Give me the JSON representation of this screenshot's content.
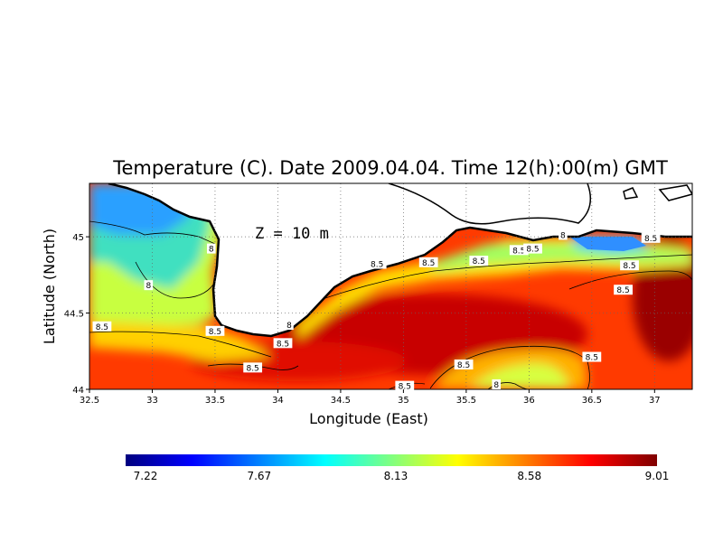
{
  "chart_data": {
    "type": "heatmap",
    "title": "Temperature (C). Date 2009.04.04. Time 12(h):00(m) GMT",
    "depth_label": "Z  =  10  m",
    "xlabel": "Longitude (East)",
    "ylabel": "Latitude (North)",
    "xlim": [
      32.5,
      37.3
    ],
    "ylim": [
      44.0,
      45.35
    ],
    "x_ticks": [
      "32.5",
      "33",
      "33.5",
      "34",
      "34.5",
      "35",
      "35.5",
      "36",
      "36.5",
      "37"
    ],
    "x_tick_values": [
      32.5,
      33,
      33.5,
      34,
      34.5,
      35,
      35.5,
      36,
      36.5,
      37
    ],
    "y_ticks": [
      "44",
      "44.5",
      "45"
    ],
    "y_tick_values": [
      44,
      44.5,
      45
    ],
    "grid": true,
    "colorbar": {
      "min": 7.22,
      "max": 9.01,
      "tick_labels": [
        "7.22",
        "7.67",
        "8.13",
        "8.58",
        "9.01"
      ],
      "tick_values": [
        7.22,
        7.67,
        8.13,
        8.58,
        9.01
      ],
      "colors": [
        "#00007f",
        "#0000ff",
        "#0080ff",
        "#00ffff",
        "#80ff80",
        "#ffff00",
        "#ff8000",
        "#ff0000",
        "#7f0000"
      ]
    },
    "contour_labels": [
      {
        "text": "8",
        "lon": 32.97,
        "lat": 44.68
      },
      {
        "text": "8",
        "lon": 33.47,
        "lat": 44.92
      },
      {
        "text": "8.5",
        "lon": 32.6,
        "lat": 44.41
      },
      {
        "text": "8.5",
        "lon": 33.5,
        "lat": 44.38
      },
      {
        "text": "8.5",
        "lon": 33.8,
        "lat": 44.14
      },
      {
        "text": "8.5",
        "lon": 34.04,
        "lat": 44.3
      },
      {
        "text": "8",
        "lon": 34.09,
        "lat": 44.42
      },
      {
        "text": "8.5",
        "lon": 34.79,
        "lat": 44.82
      },
      {
        "text": "8.5",
        "lon": 35.2,
        "lat": 44.83
      },
      {
        "text": "8.5",
        "lon": 35.6,
        "lat": 44.84
      },
      {
        "text": "8.5",
        "lon": 35.92,
        "lat": 44.91
      },
      {
        "text": "8.5",
        "lon": 36.03,
        "lat": 44.92
      },
      {
        "text": "8",
        "lon": 36.27,
        "lat": 45.01
      },
      {
        "text": "8.5",
        "lon": 36.97,
        "lat": 44.99
      },
      {
        "text": "8.5",
        "lon": 36.8,
        "lat": 44.81
      },
      {
        "text": "8.5",
        "lon": 36.75,
        "lat": 44.65
      },
      {
        "text": "8.5",
        "lon": 36.5,
        "lat": 44.21
      },
      {
        "text": "8.5",
        "lon": 35.48,
        "lat": 44.16
      },
      {
        "text": "8.5",
        "lon": 35.01,
        "lat": 44.02
      },
      {
        "text": "8",
        "lon": 35.74,
        "lat": 44.03
      }
    ]
  }
}
